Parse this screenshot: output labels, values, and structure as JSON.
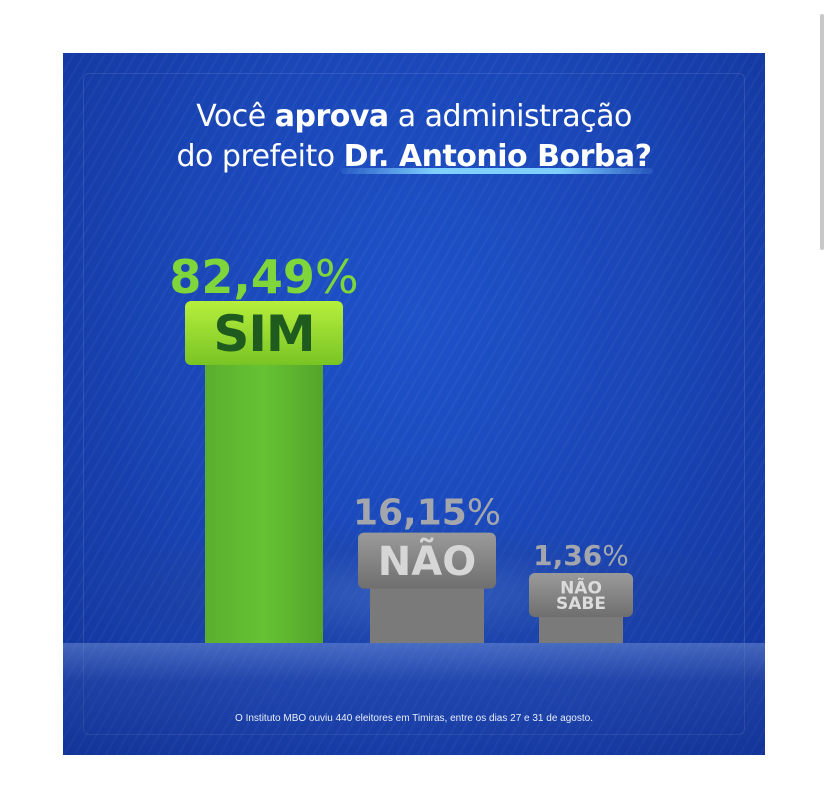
{
  "title": {
    "line1_pre": "Você ",
    "line1_bold": "aprova",
    "line1_post": " a administração",
    "line2_pre": "do prefeito ",
    "line2_bold": "Dr. Antonio Borba?"
  },
  "footnote": "O Instituto MBO ouviu 440 eleitores em Timiras, entre os dias 27 e 31 de agosto.",
  "colors": {
    "sim": "#5fb832",
    "sim_badge": "#8fd62a",
    "nao": "#7a7a7a",
    "nao_badge": "#858585",
    "pct_sim": "#7ed63a",
    "pct_other": "#a3a6ad"
  },
  "chart_data": {
    "type": "bar",
    "title": "Você aprova a administração do prefeito Dr. Antonio Borba?",
    "categories": [
      "SIM",
      "NÃO",
      "NÃO SABE"
    ],
    "values": [
      82.49,
      16.15,
      1.36
    ],
    "value_labels": [
      {
        "num": "82,49",
        "pct": "%"
      },
      {
        "num": "16,15",
        "pct": "%"
      },
      {
        "num": "1,36",
        "pct": "%"
      }
    ],
    "badge_labels": [
      [
        "SIM"
      ],
      [
        "NÃO"
      ],
      [
        "NÃO",
        "SABE"
      ]
    ],
    "xlabel": "",
    "ylabel": "",
    "ylim": [
      0,
      100
    ],
    "grid": false,
    "legend": "none"
  }
}
